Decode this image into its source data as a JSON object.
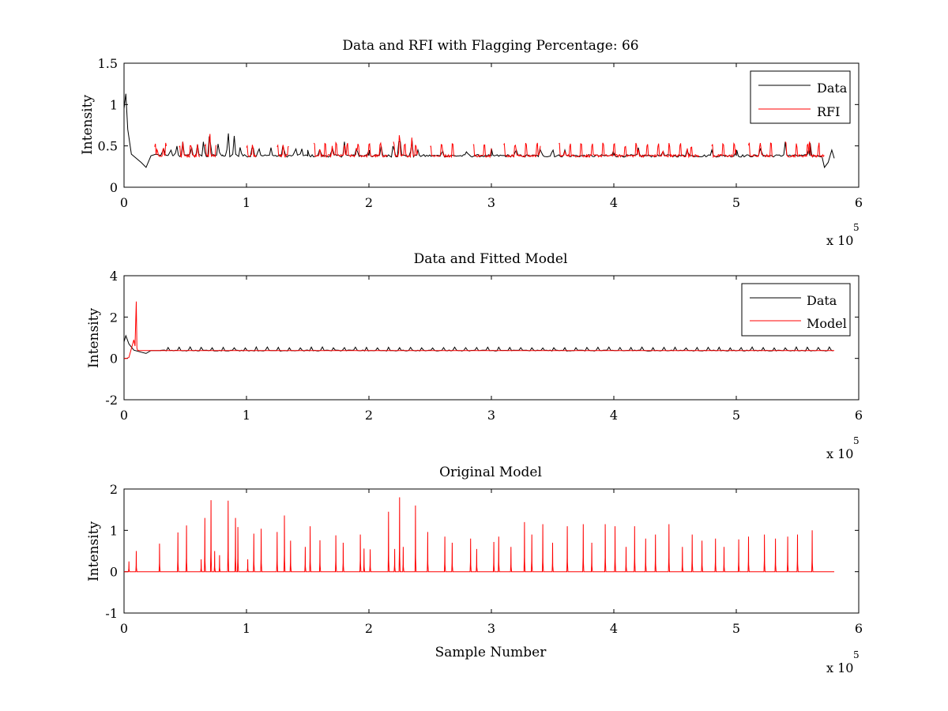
{
  "figure": {
    "background": "#ffffff",
    "series_colors": {
      "data": "#000000",
      "rfi": "#ff0000"
    }
  },
  "chart_data": [
    {
      "type": "line",
      "title": "Data and RFI with Flagging Percentage: 66",
      "xlabel": "",
      "ylabel": "Intensity",
      "xlim": [
        0,
        600000
      ],
      "ylim": [
        0,
        1.5
      ],
      "xticks": [
        "0",
        "1",
        "2",
        "3",
        "4",
        "5",
        "6"
      ],
      "yticks": [
        "0",
        "0.5",
        "1",
        "1.5"
      ],
      "x_exponent": "x 10",
      "x_exponent_power": "5",
      "legend": {
        "position": "top-right",
        "entries": [
          "Data",
          "RFI"
        ]
      },
      "grid": false,
      "series": [
        {
          "name": "Data",
          "color": "#000000",
          "baseline": 0.38,
          "x": [
            0,
            1500,
            3000,
            6000,
            10000,
            14000,
            18000,
            22000,
            26000,
            40000,
            80000,
            150000,
            200000,
            300000,
            400000,
            500000,
            560000,
            572000,
            575000,
            578000,
            580000
          ],
          "y": [
            0.95,
            1.13,
            0.7,
            0.4,
            0.35,
            0.3,
            0.24,
            0.38,
            0.4,
            0.38,
            0.38,
            0.38,
            0.38,
            0.38,
            0.38,
            0.38,
            0.38,
            0.24,
            0.3,
            0.45,
            0.35
          ],
          "peaks": [
            [
              10000,
              0.46
            ],
            [
              22000,
              0.5
            ],
            [
              27000,
              0.48
            ],
            [
              32000,
              0.5
            ],
            [
              38000,
              0.48
            ],
            [
              43000,
              0.52
            ],
            [
              48000,
              0.55
            ],
            [
              55000,
              0.5
            ],
            [
              60000,
              0.52
            ],
            [
              65000,
              0.58
            ],
            [
              70000,
              0.72
            ],
            [
              77000,
              0.55
            ],
            [
              85000,
              0.7
            ],
            [
              90000,
              0.62
            ],
            [
              95000,
              0.5
            ],
            [
              105000,
              0.55
            ],
            [
              110000,
              0.5
            ],
            [
              120000,
              0.48
            ],
            [
              130000,
              0.55
            ],
            [
              140000,
              0.5
            ],
            [
              145000,
              0.48
            ],
            [
              150000,
              0.45
            ],
            [
              160000,
              0.48
            ],
            [
              170000,
              0.5
            ],
            [
              180000,
              0.55
            ],
            [
              190000,
              0.5
            ],
            [
              200000,
              0.48
            ],
            [
              210000,
              0.5
            ],
            [
              220000,
              0.55
            ],
            [
              225000,
              0.7
            ],
            [
              235000,
              0.6
            ],
            [
              240000,
              0.45
            ],
            [
              260000,
              0.46
            ],
            [
              280000,
              0.45
            ],
            [
              300000,
              0.47
            ],
            [
              320000,
              0.48
            ],
            [
              340000,
              0.5
            ],
            [
              350000,
              0.48
            ],
            [
              360000,
              0.45
            ],
            [
              400000,
              0.46
            ],
            [
              420000,
              0.48
            ],
            [
              440000,
              0.45
            ],
            [
              460000,
              0.47
            ],
            [
              480000,
              0.45
            ],
            [
              500000,
              0.48
            ],
            [
              520000,
              0.5
            ],
            [
              540000,
              0.55
            ],
            [
              560000,
              0.6
            ]
          ]
        },
        {
          "name": "RFI",
          "color": "#ff0000",
          "x": [],
          "y": [],
          "segments": [
            [
              25000,
              35000
            ],
            [
              45000,
              62000
            ],
            [
              66000,
              75000
            ],
            [
              100000,
              108000
            ],
            [
              125000,
              135000
            ],
            [
              155000,
              215000
            ],
            [
              220000,
              240000
            ],
            [
              250000,
              270000
            ],
            [
              285000,
              300000
            ],
            [
              310000,
              340000
            ],
            [
              355000,
              470000
            ],
            [
              480000,
              500000
            ],
            [
              510000,
              530000
            ],
            [
              540000,
              572000
            ]
          ]
        }
      ]
    },
    {
      "type": "line",
      "title": "Data and Fitted Model",
      "xlabel": "",
      "ylabel": "Intensity",
      "xlim": [
        0,
        600000
      ],
      "ylim": [
        -2,
        4
      ],
      "xticks": [
        "0",
        "1",
        "2",
        "3",
        "4",
        "5",
        "6"
      ],
      "yticks": [
        "-2",
        "0",
        "2",
        "4"
      ],
      "x_exponent": "x 10",
      "x_exponent_power": "5",
      "legend": {
        "position": "top-right",
        "entries": [
          "Data",
          "Model"
        ]
      },
      "grid": false,
      "series": [
        {
          "name": "Data",
          "color": "#000000",
          "x": [
            0,
            1500,
            4000,
            8000,
            14000,
            18000,
            22000,
            30000,
            580000
          ],
          "y": [
            0.8,
            1.1,
            0.7,
            0.4,
            0.3,
            0.24,
            0.38,
            0.38,
            0.38
          ]
        },
        {
          "name": "Model",
          "color": "#ff0000",
          "x": [
            0,
            2000,
            4000,
            8000,
            9000,
            10000,
            10500,
            11000,
            12000,
            20000,
            580000
          ],
          "y": [
            0,
            0,
            0.05,
            0.9,
            0.6,
            2.75,
            0.5,
            0.4,
            0.38,
            0.38,
            0.38
          ]
        }
      ]
    },
    {
      "type": "line",
      "title": "Original Model",
      "xlabel": "Sample Number",
      "ylabel": "Intensity",
      "xlim": [
        0,
        600000
      ],
      "ylim": [
        -1,
        2
      ],
      "xticks": [
        "0",
        "1",
        "2",
        "3",
        "4",
        "5",
        "6"
      ],
      "yticks": [
        "-1",
        "0",
        "1",
        "2"
      ],
      "x_exponent": "x 10",
      "x_exponent_power": "5",
      "legend": null,
      "grid": false,
      "series": [
        {
          "name": "",
          "color": "#ff0000",
          "baseline": 0,
          "x_end": 580000,
          "peaks": [
            [
              4000,
              0.25
            ],
            [
              10000,
              0.5
            ],
            [
              29000,
              0.68
            ],
            [
              44000,
              0.95
            ],
            [
              51000,
              1.12
            ],
            [
              63000,
              0.3
            ],
            [
              66000,
              1.3
            ],
            [
              71000,
              1.73
            ],
            [
              74000,
              0.5
            ],
            [
              78000,
              0.4
            ],
            [
              85000,
              1.72
            ],
            [
              91000,
              1.3
            ],
            [
              93000,
              1.08
            ],
            [
              101000,
              0.3
            ],
            [
              106000,
              0.92
            ],
            [
              112000,
              1.04
            ],
            [
              125000,
              0.96
            ],
            [
              131000,
              1.36
            ],
            [
              136000,
              0.75
            ],
            [
              148000,
              0.6
            ],
            [
              152000,
              1.1
            ],
            [
              160000,
              0.76
            ],
            [
              173000,
              0.88
            ],
            [
              179000,
              0.7
            ],
            [
              193000,
              0.9
            ],
            [
              196000,
              0.56
            ],
            [
              201000,
              0.54
            ],
            [
              216000,
              1.45
            ],
            [
              221000,
              0.55
            ],
            [
              225000,
              1.8
            ],
            [
              228000,
              0.6
            ],
            [
              238000,
              1.6
            ],
            [
              248000,
              0.96
            ],
            [
              262000,
              0.85
            ],
            [
              268000,
              0.7
            ],
            [
              283000,
              0.8
            ],
            [
              288000,
              0.55
            ],
            [
              302000,
              0.72
            ],
            [
              306000,
              0.85
            ],
            [
              316000,
              0.6
            ],
            [
              327000,
              1.2
            ],
            [
              333000,
              0.9
            ],
            [
              342000,
              1.15
            ],
            [
              350000,
              0.7
            ],
            [
              362000,
              1.1
            ],
            [
              375000,
              1.15
            ],
            [
              382000,
              0.7
            ],
            [
              393000,
              1.15
            ],
            [
              401000,
              1.1
            ],
            [
              410000,
              0.6
            ],
            [
              417000,
              1.1
            ],
            [
              426000,
              0.8
            ],
            [
              434000,
              0.9
            ],
            [
              445000,
              1.15
            ],
            [
              456000,
              0.6
            ],
            [
              464000,
              0.9
            ],
            [
              472000,
              0.75
            ],
            [
              483000,
              0.8
            ],
            [
              490000,
              0.6
            ],
            [
              502000,
              0.78
            ],
            [
              510000,
              0.85
            ],
            [
              523000,
              0.9
            ],
            [
              532000,
              0.8
            ],
            [
              542000,
              0.85
            ],
            [
              550000,
              0.9
            ],
            [
              562000,
              1.0
            ]
          ]
        }
      ]
    }
  ]
}
